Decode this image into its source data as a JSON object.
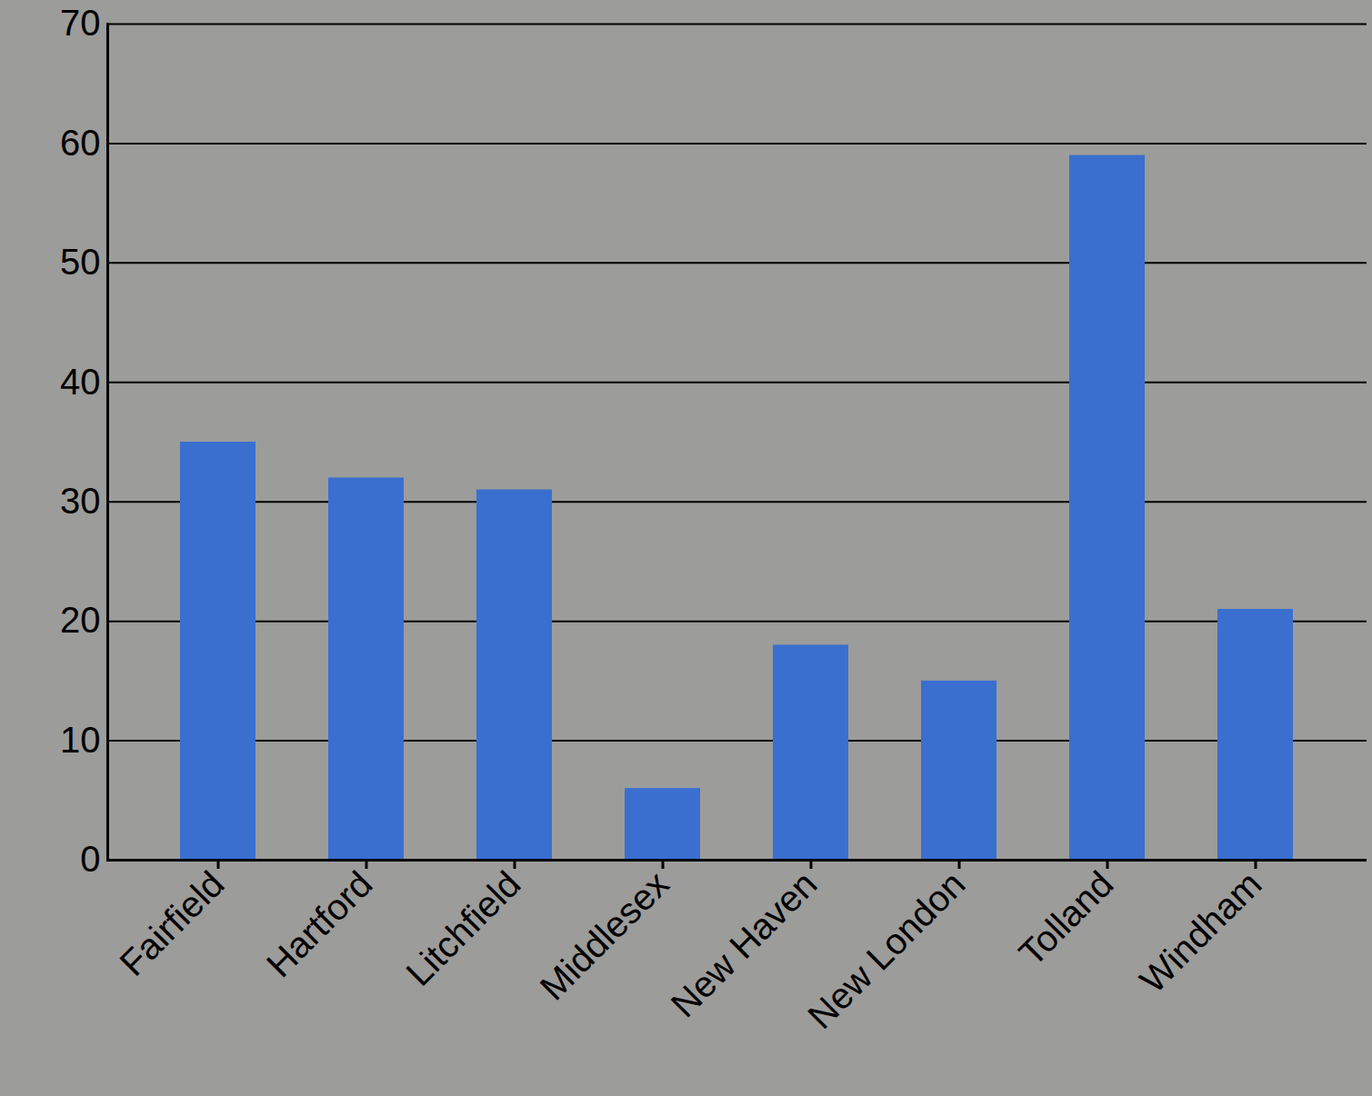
{
  "chart_data": {
    "type": "bar",
    "categories": [
      "Fairfield",
      "Hartford",
      "Litchfield",
      "Middlesex",
      "New Haven",
      "New London",
      "Tolland",
      "Windham"
    ],
    "values": [
      35,
      32,
      31,
      6,
      18,
      15,
      59,
      21
    ],
    "color": "#3a6fcf",
    "ylim": [
      0,
      70
    ],
    "yticks": [
      0,
      10,
      20,
      30,
      40,
      50,
      60,
      70
    ],
    "grid": true
  }
}
